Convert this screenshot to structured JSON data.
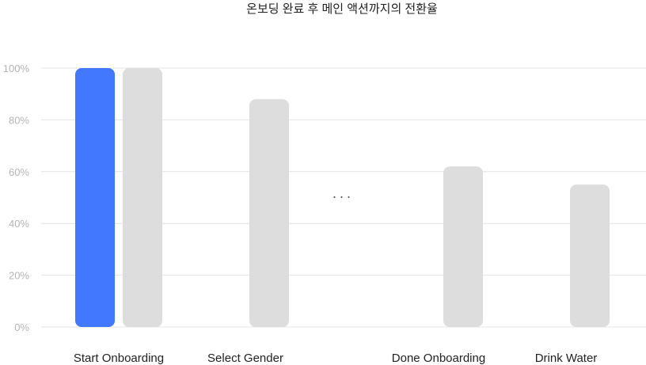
{
  "chart_data": {
    "type": "bar",
    "title": "온보딩 완료 후 메인 액션까지의 전환율",
    "xlabel": "",
    "ylabel": "",
    "ylim": [
      0,
      100
    ],
    "y_ticks": [
      "0%",
      "20%",
      "40%",
      "60%",
      "80%",
      "100%"
    ],
    "grid": true,
    "highlight_color": "#4178fd",
    "bar_color": "#dddddd",
    "gap_marker": "···",
    "groups": [
      {
        "label": "Start Onboarding",
        "bars": [
          {
            "value": 100,
            "highlight": true
          },
          {
            "value": 100,
            "highlight": false
          }
        ]
      },
      {
        "label": "Select Gender",
        "bars": [
          {
            "value": 88,
            "highlight": false
          }
        ]
      },
      {
        "label": "Done Onboarding",
        "bars": [
          {
            "value": 62,
            "highlight": false
          }
        ]
      },
      {
        "label": "Drink Water",
        "bars": [
          {
            "value": 55,
            "highlight": false
          }
        ]
      }
    ]
  }
}
